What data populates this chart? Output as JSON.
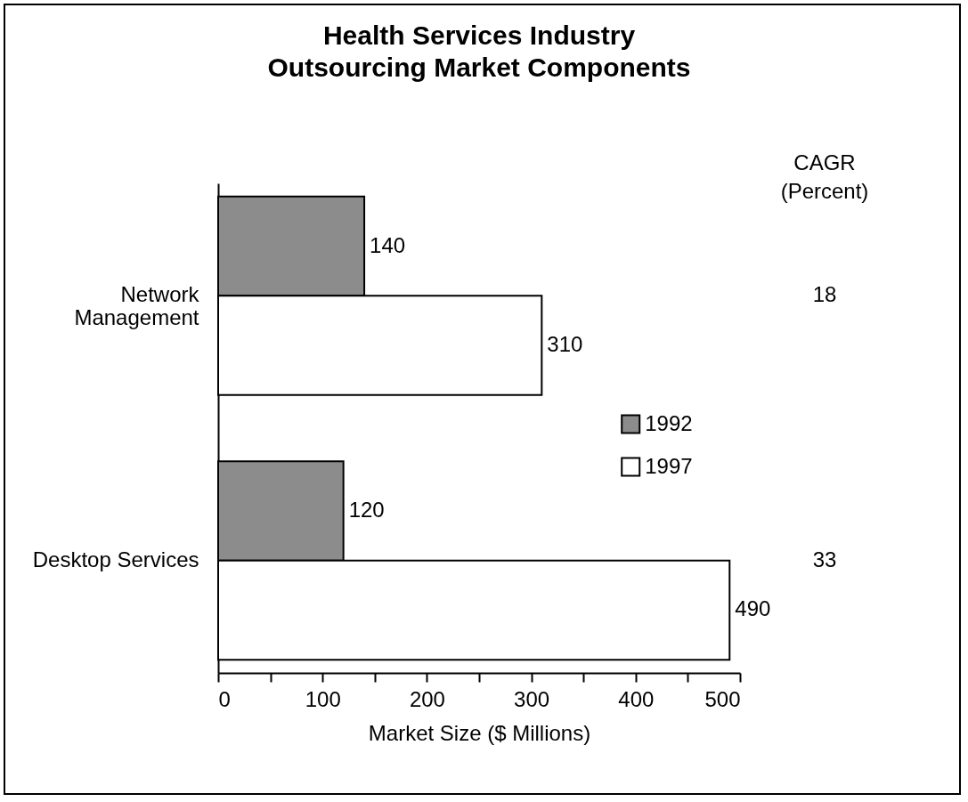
{
  "chart_data": {
    "type": "bar",
    "orientation": "horizontal",
    "title": "Health Services Industry Outsourcing Market Components",
    "xlabel": "Market Size ($ Millions)",
    "categories": [
      "Network Management",
      "Desktop Services"
    ],
    "series": [
      {
        "name": "1992",
        "color": "#8c8c8c",
        "values": [
          140,
          120
        ]
      },
      {
        "name": "1997",
        "color": "#ffffff",
        "values": [
          310,
          490
        ]
      }
    ],
    "xlim": [
      0,
      500
    ],
    "xticks": [
      0,
      {
        "value": 50,
        "label": null
      },
      100,
      {
        "value": 150,
        "label": null
      },
      200,
      {
        "value": 250,
        "label": null
      },
      300,
      {
        "value": 350,
        "label": null
      },
      400,
      {
        "value": 450,
        "label": null
      },
      500
    ],
    "data_labels": true,
    "legend": "right",
    "grid": false,
    "annotations": [
      "CAGR (Percent)",
      "18",
      "33"
    ]
  }
}
